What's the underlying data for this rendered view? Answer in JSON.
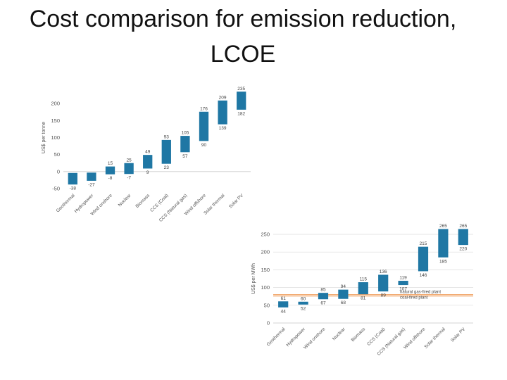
{
  "slide": {
    "title_line1": "Cost comparison for emission reduction,",
    "title_line2": "LCOE"
  },
  "chart_data": [
    {
      "type": "bar",
      "subtype": "floating-range",
      "ylabel": "US$ per tonne",
      "ylim": [
        -50,
        250
      ],
      "yticks": [
        -50,
        0,
        50,
        100,
        150,
        200
      ],
      "grid": false,
      "color": "#1f77a4",
      "categories": [
        "Geothermal",
        "Hydropower",
        "Wind onshore",
        "Nuclear",
        "Biomass",
        "CCS (Coal)",
        "CCS (Natural gas)",
        "Wind offshore",
        "Solar thermal",
        "Solar PV"
      ],
      "series": [
        {
          "low": [
            -38,
            -27,
            -8,
            -7,
            9,
            23,
            57,
            90,
            139,
            182
          ],
          "high": [
            -4,
            -3,
            15,
            25,
            49,
            93,
            105,
            176,
            209,
            235
          ]
        }
      ],
      "low_labels": [
        "-38",
        "-27",
        "-8",
        "-7",
        "9",
        "23",
        "57",
        "90",
        "139",
        "182"
      ],
      "high_labels": [
        "",
        "",
        "15",
        "25",
        "49",
        "93",
        "105",
        "176",
        "209",
        "235"
      ]
    },
    {
      "type": "bar",
      "subtype": "floating-range",
      "ylabel": "US$ per MWh",
      "ylim": [
        0,
        250
      ],
      "yticks": [
        0,
        50,
        100,
        150,
        200,
        250
      ],
      "grid": true,
      "color": "#1f77a4",
      "categories": [
        "Geothermal",
        "Hydropower",
        "Wind onshore",
        "Nuclear",
        "Biomass",
        "CCS (Coal)",
        "CCS (Natural gas)",
        "Wind offshore",
        "Solar thermal",
        "Solar PV"
      ],
      "series": [
        {
          "low": [
            44,
            52,
            67,
            68,
            81,
            89,
            107,
            146,
            185,
            220
          ],
          "high": [
            61,
            60,
            85,
            94,
            115,
            136,
            119,
            215,
            265,
            265
          ]
        }
      ],
      "low_labels": [
        "44",
        "52",
        "67",
        "68",
        "81",
        "89",
        "107",
        "146",
        "185",
        "220"
      ],
      "high_labels": [
        "61",
        "60",
        "85",
        "94",
        "115",
        "136",
        "119",
        "215",
        "265",
        "265"
      ],
      "reference_lines": [
        {
          "label": "natural gas-fired plant",
          "value": 80,
          "color": "#f0a060"
        },
        {
          "label": "coal-fired plant",
          "value": 76,
          "color": "#f0a060"
        }
      ]
    }
  ]
}
